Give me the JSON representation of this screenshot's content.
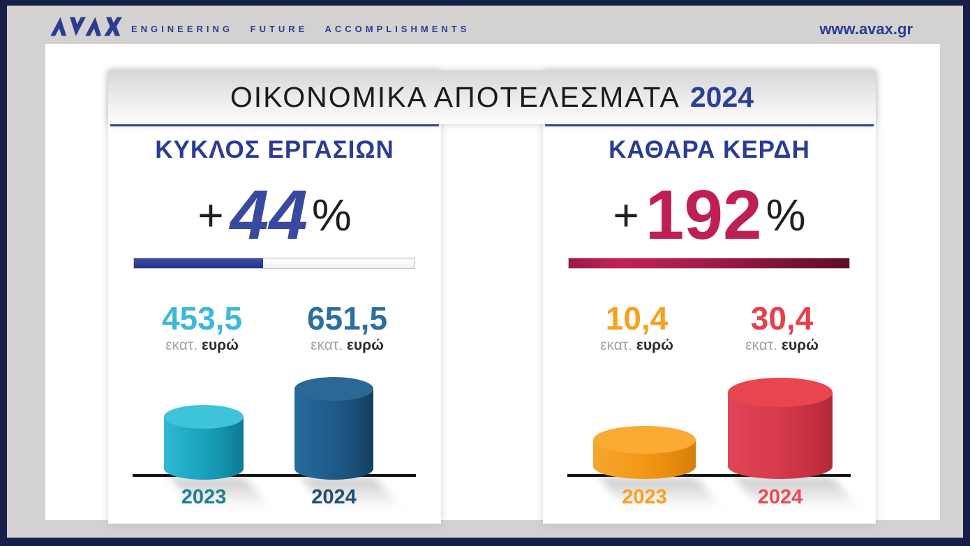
{
  "header": {
    "logo": "AVAX",
    "tagline": "ENGINEERING FUTURE ACCOMPLISHMENTS",
    "website": "www.avax.gr"
  },
  "title": {
    "text": "ΟΙΚΟΝΟΜΙΚΑ ΑΠΟΤΕΛΕΣΜΑΤΑ",
    "year": "2024"
  },
  "panels": [
    {
      "heading": "ΚΥΚΛΟΣ ΕΡΓΑΣΙΩΝ",
      "plus": "+",
      "percent_value": "44",
      "percent_sign": "%",
      "progress_pct": 46,
      "values": [
        {
          "amount": "453,5",
          "unit_small": "εκατ.",
          "unit_bold": "ευρώ"
        },
        {
          "amount": "651,5",
          "unit_small": "εκατ.",
          "unit_bold": "ευρώ"
        }
      ],
      "years": [
        "2023",
        "2024"
      ]
    },
    {
      "heading": "ΚΑΘΑΡΑ ΚΕΡΔΗ",
      "plus": "+",
      "percent_value": "192",
      "percent_sign": "%",
      "progress_pct": 100,
      "values": [
        {
          "amount": "10,4",
          "unit_small": "εκατ.",
          "unit_bold": "ευρώ"
        },
        {
          "amount": "30,4",
          "unit_small": "εκατ.",
          "unit_bold": "ευρώ"
        }
      ],
      "years": [
        "2023",
        "2024"
      ]
    }
  ],
  "colors": {
    "brand_navy": "#2c3c93",
    "frame_navy": "#161f49",
    "frame_grey": "#d3d2d0",
    "turnover_2023": "#1ba4bf",
    "turnover_2024": "#1f5c8c",
    "profit_2023": "#f29714",
    "profit_2024": "#d63a4c",
    "crimson_pct": "#bf1f57",
    "blue_pct": "#3a49a0"
  },
  "chart_data": [
    {
      "type": "bar",
      "title": "ΚΥΚΛΟΣ ΕΡΓΑΣΙΩΝ",
      "categories": [
        "2023",
        "2024"
      ],
      "values": [
        453.5,
        651.5
      ],
      "unit": "εκατ. ευρώ",
      "change_pct": "+44%",
      "colors": [
        "#1ba4bf",
        "#1f5c8c"
      ],
      "legend_position": "none",
      "grid": false
    },
    {
      "type": "bar",
      "title": "ΚΑΘΑΡΑ ΚΕΡΔΗ",
      "categories": [
        "2023",
        "2024"
      ],
      "values": [
        10.4,
        30.4
      ],
      "unit": "εκατ. ευρώ",
      "change_pct": "+192%",
      "colors": [
        "#f29714",
        "#d63a4c"
      ],
      "legend_position": "none",
      "grid": false
    }
  ]
}
